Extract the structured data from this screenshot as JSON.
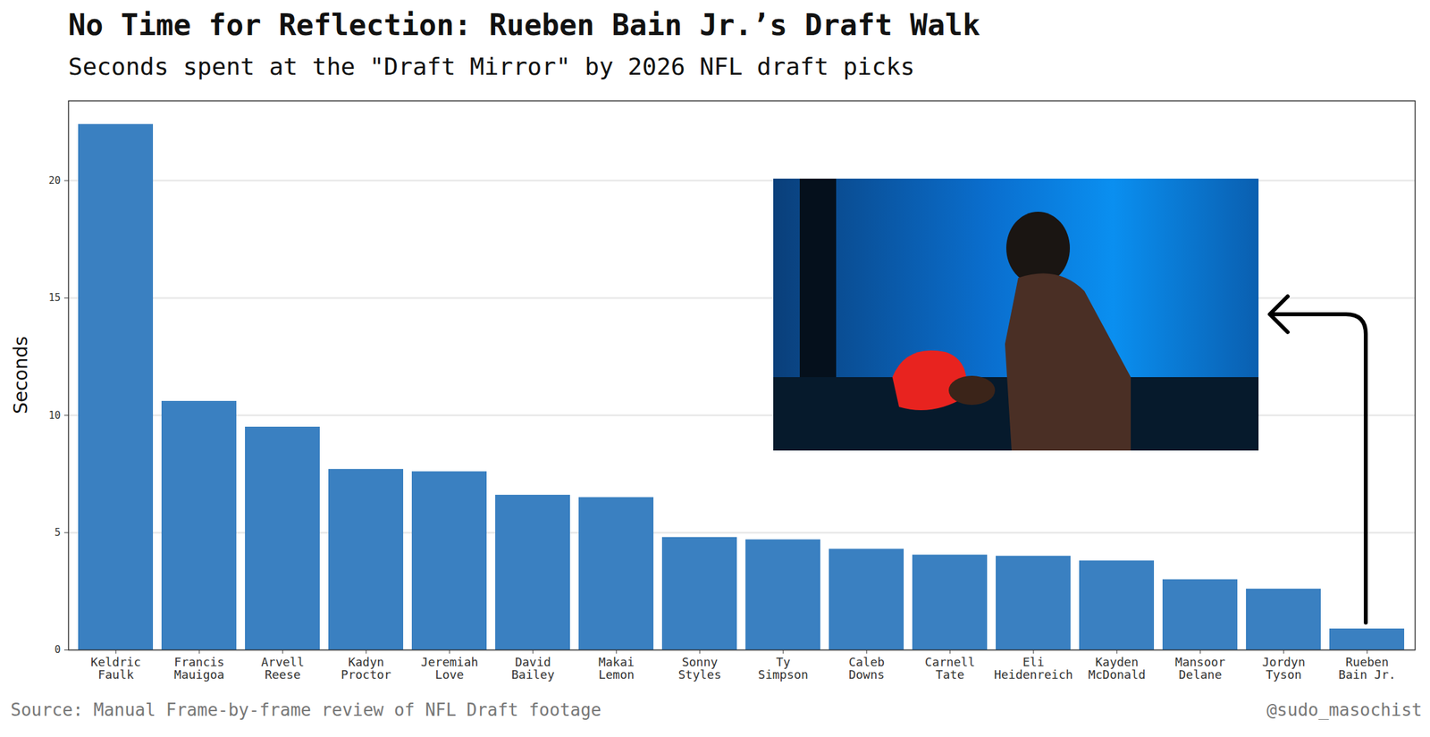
{
  "chart_data": {
    "type": "bar",
    "title": "No Time for Reflection: Rueben Bain Jr.’s Draft Walk",
    "subtitle": "Seconds spent at the \"Draft Mirror\" by 2026 NFL draft picks",
    "ylabel": "Seconds",
    "caption": "Source: Manual Frame-by-frame review of NFL Draft footage",
    "credit": "@sudo_masochist",
    "categories": [
      "Keldric Faulk",
      "Francis Mauigoa",
      "Arvell Reese",
      "Kadyn Proctor",
      "Jeremiah Love",
      "David Bailey",
      "Makai Lemon",
      "Sonny Styles",
      "Ty Simpson",
      "Caleb Downs",
      "Carnell Tate",
      "Eli Heidenreich",
      "Kayden McDonald",
      "Mansoor Delane",
      "Jordyn Tyson",
      "Rueben Bain Jr."
    ],
    "values": [
      22.4,
      10.6,
      9.5,
      7.7,
      7.6,
      6.6,
      6.5,
      4.8,
      4.7,
      4.3,
      4.05,
      4.0,
      3.8,
      3.0,
      2.6,
      0.9
    ],
    "color": "#3a80c1",
    "ylim": [
      0,
      23.4
    ],
    "yticks": [
      0,
      5,
      10,
      15,
      20
    ],
    "grid": true
  }
}
